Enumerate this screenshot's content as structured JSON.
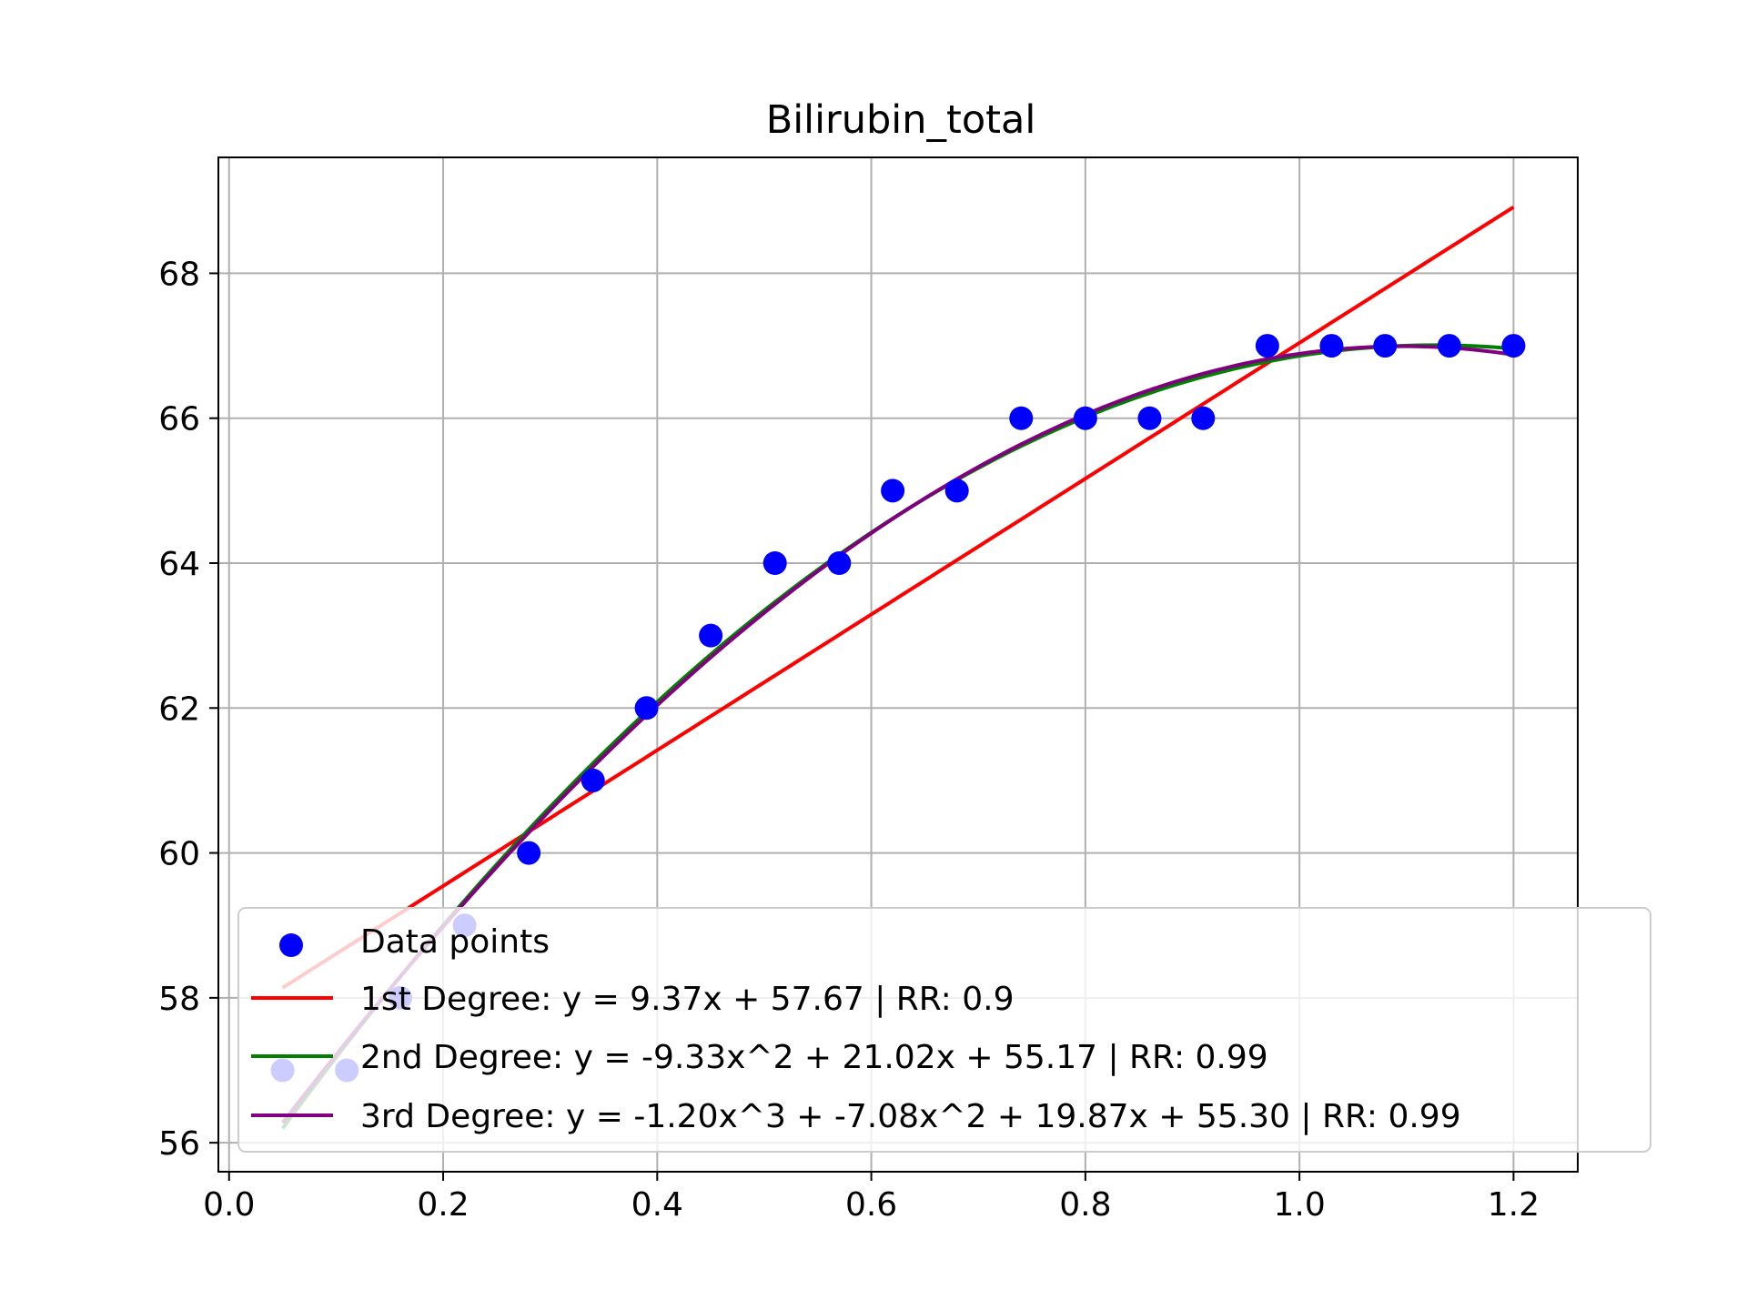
{
  "chart_data": {
    "type": "scatter",
    "title": "Bilirubin_total",
    "xlabel": "",
    "ylabel": "",
    "xlim": [
      -0.01,
      1.26
    ],
    "ylim": [
      55.6,
      69.6
    ],
    "x_ticks": [
      0.0,
      0.2,
      0.4,
      0.6,
      0.8,
      1.0,
      1.2
    ],
    "x_tick_labels": [
      "0.0",
      "0.2",
      "0.4",
      "0.6",
      "0.8",
      "1.0",
      "1.2"
    ],
    "y_ticks": [
      56,
      58,
      60,
      62,
      64,
      66,
      68
    ],
    "y_tick_labels": [
      "56",
      "58",
      "60",
      "62",
      "64",
      "66",
      "68"
    ],
    "grid": true,
    "legend_position": "lower right",
    "points": {
      "name": "Data points",
      "color": "#0000ff",
      "x": [
        0.05,
        0.11,
        0.16,
        0.22,
        0.28,
        0.34,
        0.39,
        0.45,
        0.51,
        0.57,
        0.62,
        0.68,
        0.74,
        0.8,
        0.86,
        0.91,
        0.97,
        1.03,
        1.08,
        1.14,
        1.2
      ],
      "y": [
        57,
        57,
        58,
        59,
        60,
        61,
        62,
        63,
        64,
        64,
        65,
        65,
        66,
        66,
        66,
        66,
        67,
        67,
        67,
        67,
        67
      ]
    },
    "series": [
      {
        "name": "1st Degree: y = 9.37x + 57.67 | RR: 0.9",
        "color": "#ff0000",
        "coefficients": [
          9.37,
          57.67
        ],
        "x_range": [
          0.05,
          1.2
        ]
      },
      {
        "name": "2nd Degree: y = -9.33x^2 + 21.02x + 55.17 | RR: 0.99",
        "color": "#008000",
        "coefficients": [
          -9.33,
          21.02,
          55.17
        ],
        "x_range": [
          0.05,
          1.2
        ]
      },
      {
        "name": "3rd Degree: y = -1.20x^3 + -7.08x^2 + 19.87x + 55.30 | RR: 0.99",
        "color": "#800080",
        "coefficients": [
          -1.2,
          -7.08,
          19.87,
          55.3
        ],
        "x_range": [
          0.05,
          1.2
        ]
      }
    ]
  }
}
